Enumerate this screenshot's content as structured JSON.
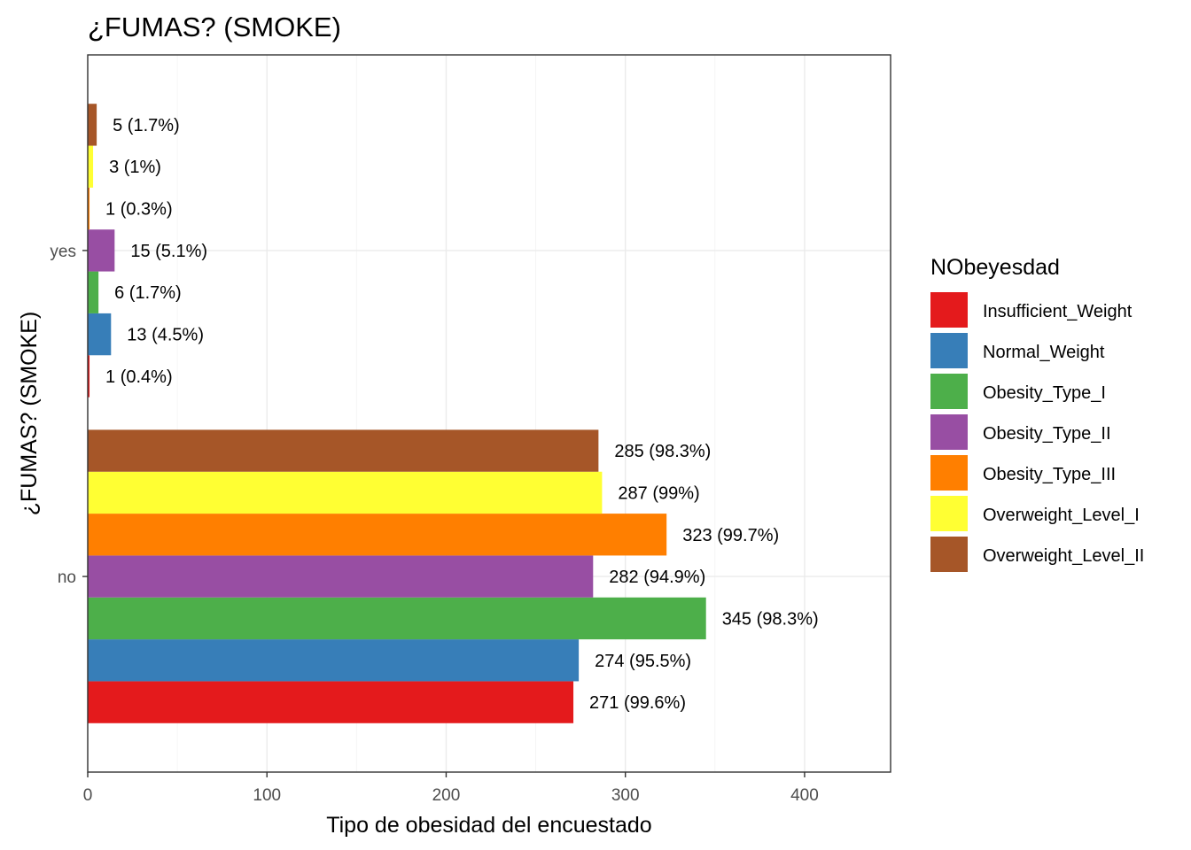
{
  "chart_data": {
    "type": "bar",
    "orientation": "horizontal",
    "title": "¿FUMAS? (SMOKE)",
    "xlabel": "Tipo de obesidad del encuestado",
    "ylabel": "¿FUMAS? (SMOKE)",
    "xlim": [
      0,
      448
    ],
    "x_ticks": [
      "0",
      "100",
      "200",
      "300",
      "400"
    ],
    "categories": [
      "no",
      "yes"
    ],
    "grid": true,
    "legend": {
      "title": "NObeyesdad",
      "position": "right"
    },
    "series": [
      {
        "name": "Insufficient_Weight",
        "color": "#E41A1C",
        "values": [
          271,
          1
        ],
        "labels": [
          "271 (99.6%)",
          "1 (0.4%)"
        ]
      },
      {
        "name": "Normal_Weight",
        "color": "#377EB8",
        "values": [
          274,
          13
        ],
        "labels": [
          "274 (95.5%)",
          "13 (4.5%)"
        ]
      },
      {
        "name": "Obesity_Type_I",
        "color": "#4DAF4A",
        "values": [
          345,
          6
        ],
        "labels": [
          "345 (98.3%)",
          "6 (1.7%)"
        ]
      },
      {
        "name": "Obesity_Type_II",
        "color": "#984EA3",
        "values": [
          282,
          15
        ],
        "labels": [
          "282 (94.9%)",
          "15 (5.1%)"
        ]
      },
      {
        "name": "Obesity_Type_III",
        "color": "#FF7F00",
        "values": [
          323,
          1
        ],
        "labels": [
          "323 (99.7%)",
          "1 (0.3%)"
        ]
      },
      {
        "name": "Overweight_Level_I",
        "color": "#FFFF33",
        "values": [
          287,
          3
        ],
        "labels": [
          "287 (99%)",
          "3 (1%)"
        ]
      },
      {
        "name": "Overweight_Level_II",
        "color": "#A65628",
        "values": [
          285,
          5
        ],
        "labels": [
          "285 (98.3%)",
          "5 (1.7%)"
        ]
      }
    ]
  }
}
